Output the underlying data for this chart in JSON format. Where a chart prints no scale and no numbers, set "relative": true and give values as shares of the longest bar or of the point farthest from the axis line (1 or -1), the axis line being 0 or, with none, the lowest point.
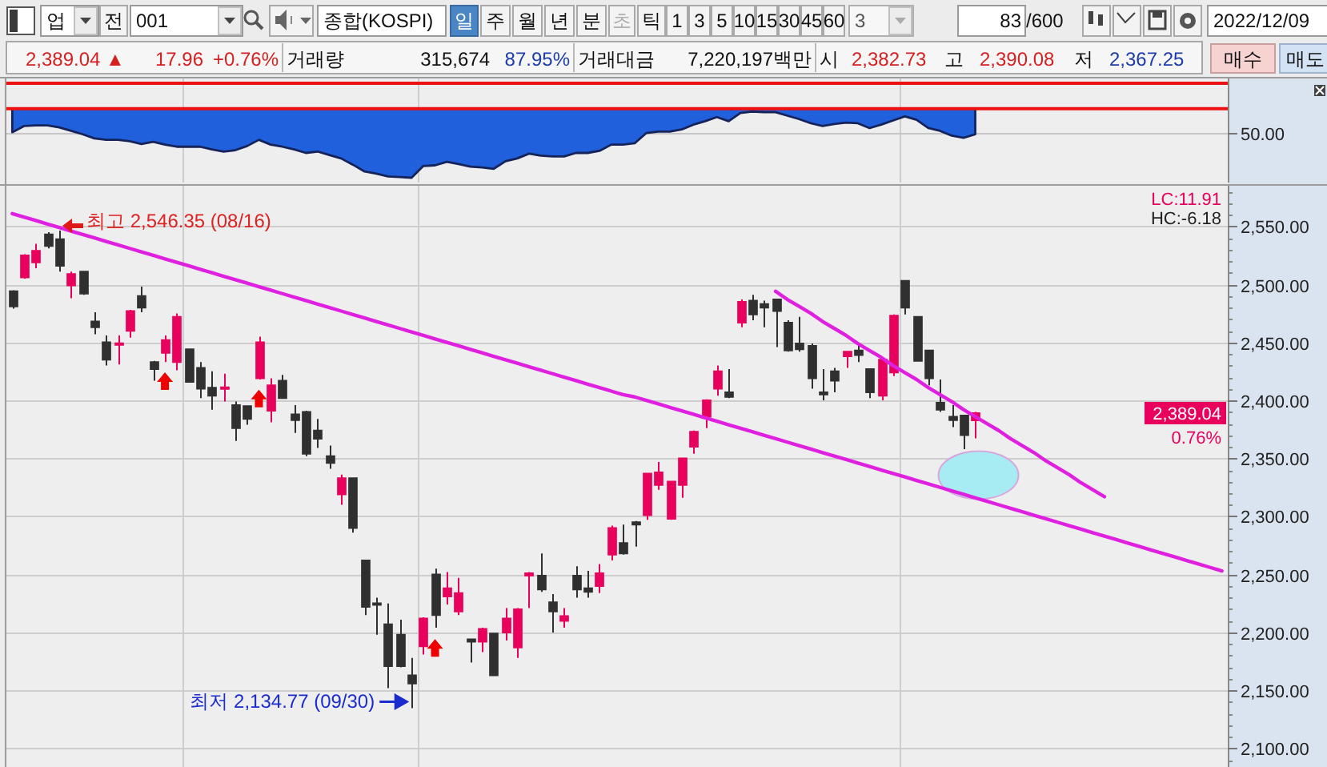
{
  "chart_data": [
    {
      "type": "other",
      "annotations": [
        "업",
        "전",
        "001",
        "종합(KOSPI)",
        "일",
        "주",
        "월",
        "년",
        "분",
        "초",
        "틱",
        "1",
        "3",
        "5",
        "10",
        "15",
        "30",
        "45",
        "60",
        "3",
        "83",
        "/600",
        "2022/12/09",
        "2,389.04 ▲",
        "17.96",
        "+0.76%",
        "거래량",
        "315,674",
        "87.95%",
        "거래대금",
        "7,220,197백만",
        "시",
        "2,382.73",
        "고",
        "2,390.08",
        "저",
        "2,367.25",
        "매수",
        "매도"
      ]
    },
    {
      "type": "area",
      "relative": true,
      "categories": [
        null,
        null,
        null,
        null,
        null,
        null,
        null,
        null,
        null,
        null,
        null,
        null,
        null,
        null,
        null,
        null,
        null,
        null,
        null,
        null,
        null,
        null,
        null,
        null,
        null,
        null,
        null,
        null,
        null,
        null,
        null,
        null,
        null,
        null,
        null,
        null,
        null,
        null,
        null,
        null,
        null,
        null,
        null,
        null,
        null,
        null,
        null,
        null,
        null,
        null,
        null,
        null,
        null,
        null,
        null,
        null,
        null,
        null,
        null,
        null,
        null,
        null,
        null,
        null,
        null,
        null,
        null,
        null,
        null,
        null,
        null,
        null,
        null,
        null,
        null,
        null,
        null,
        null,
        null,
        null,
        null,
        null,
        null,
        null,
        null,
        null,
        null,
        null,
        null,
        null,
        null,
        null,
        null,
        null,
        null,
        null,
        null,
        null,
        null,
        null,
        null,
        null,
        null,
        null
      ],
      "values": [
        -0.34,
        -0.25,
        -0.24,
        -0.24,
        -0.27,
        -0.32,
        -0.37,
        -0.43,
        -0.45,
        -0.45,
        -0.47,
        -0.51,
        -0.48,
        -0.52,
        -0.55,
        -0.55,
        -0.55,
        -0.59,
        -0.62,
        -0.6,
        -0.54,
        -0.45,
        -0.52,
        -0.55,
        -0.59,
        -0.64,
        -0.62,
        -0.67,
        -0.72,
        -0.81,
        -0.91,
        -0.94,
        -0.98,
        -0.99,
        -1,
        -0.83,
        -0.82,
        -0.77,
        -0.8,
        -0.84,
        -0.85,
        -0.87,
        -0.76,
        -0.72,
        -0.65,
        -0.68,
        -0.69,
        -0.69,
        -0.64,
        -0.64,
        -0.61,
        -0.52,
        -0.52,
        -0.5,
        -0.35,
        -0.33,
        -0.33,
        -0.3,
        -0.23,
        -0.18,
        -0.12,
        -0.18,
        -0.06,
        -0.04,
        -0.05,
        -0.05,
        -0.1,
        -0.15,
        -0.21,
        -0.25,
        -0.22,
        -0.2,
        -0.21,
        -0.28,
        -0.23,
        -0.17,
        -0.11,
        -0.16,
        -0.28,
        -0.32,
        -0.39,
        -0.42,
        -0.37,
        null,
        null,
        null,
        null,
        null,
        null,
        null,
        null,
        null,
        null,
        null,
        null,
        null,
        null,
        null,
        null,
        null,
        null,
        null,
        null,
        null
      ],
      "color": "#2060dc",
      "ref_lines": [
        {
          "axis": "y",
          "value": 0.37,
          "color": "#ee1111"
        },
        {
          "axis": "y",
          "value": 0,
          "color": "#ee1111"
        },
        {
          "axis": "y",
          "value": -0.34,
          "color": "#c6c6c6"
        }
      ],
      "annotations": [
        "50.00"
      ]
    },
    {
      "type": "candlestick",
      "categories": [
        null,
        null,
        null,
        null,
        null,
        null,
        null,
        null,
        null,
        null,
        null,
        null,
        null,
        null,
        null,
        null,
        null,
        null,
        null,
        null,
        null,
        null,
        null,
        null,
        null,
        null,
        null,
        null,
        null,
        null,
        null,
        null,
        null,
        null,
        null,
        null,
        null,
        null,
        null,
        null,
        null,
        null,
        null,
        null,
        null,
        null,
        null,
        null,
        null,
        null,
        null,
        null,
        null,
        null,
        null,
        null,
        null,
        null,
        null,
        null,
        null,
        null,
        null,
        null,
        null,
        null,
        null,
        null,
        null,
        null,
        null,
        null,
        null,
        null,
        null,
        null,
        null,
        null,
        null,
        null,
        null,
        null,
        null,
        null,
        null,
        null,
        null,
        null,
        null,
        null,
        null,
        null,
        null,
        null,
        null,
        null,
        null,
        null,
        null,
        null,
        null,
        null,
        null,
        null
      ],
      "ohlc": [
        [
          2494,
          2495,
          2479,
          2481
        ],
        [
          2506,
          2526,
          2505,
          2525
        ],
        [
          2519,
          2535,
          2514,
          2529
        ],
        [
          2543,
          2545,
          2531,
          2533
        ],
        [
          2539,
          2546.35,
          2511,
          2516
        ],
        [
          2499,
          2511,
          2488,
          2509
        ],
        [
          2511,
          2511,
          2491,
          2492
        ],
        [
          2468,
          2476,
          2457,
          2463
        ],
        [
          2450,
          2456,
          2430,
          2435
        ],
        [
          2448,
          2456,
          2431,
          2449
        ],
        [
          2460,
          2478,
          2454,
          2477
        ],
        [
          2490,
          2498,
          2476,
          2480
        ],
        [
          2433,
          2434,
          2417,
          2427
        ],
        [
          2441,
          2456,
          2433,
          2452
        ],
        [
          2433,
          2475,
          2426,
          2472
        ],
        [
          2444,
          2444,
          2416,
          2416
        ],
        [
          2428,
          2433,
          2402,
          2410
        ],
        [
          2411,
          2425,
          2392,
          2404
        ],
        [
          2410,
          2423,
          2399,
          2411
        ],
        [
          2396,
          2399,
          2365,
          2376
        ],
        [
          2395,
          2395,
          2379,
          2384
        ],
        [
          2419,
          2455,
          2418,
          2450
        ],
        [
          2391,
          2419,
          2381,
          2413
        ],
        [
          2417,
          2422,
          2402,
          2402
        ],
        [
          2388,
          2396,
          2372,
          2383
        ],
        [
          2390,
          2391,
          2352,
          2354
        ],
        [
          2374,
          2384,
          2359,
          2367
        ],
        [
          2352,
          2361,
          2341,
          2346
        ],
        [
          2319,
          2336,
          2310,
          2333
        ],
        [
          2333,
          2333,
          2286,
          2290
        ],
        [
          2262,
          2262,
          2215,
          2222
        ],
        [
          2225,
          2230,
          2198,
          2224
        ],
        [
          2207,
          2225,
          2152,
          2171
        ],
        [
          2198,
          2211,
          2170,
          2171
        ],
        [
          2163,
          2178,
          2134.77,
          2156
        ],
        [
          2188,
          2213,
          2181,
          2212
        ],
        [
          2250,
          2255,
          2204,
          2215
        ],
        [
          2231,
          2252,
          2224,
          2238
        ],
        [
          2218,
          2247,
          2215,
          2234
        ],
        [
          2194,
          2194,
          2174,
          2192
        ],
        [
          2192,
          2204,
          2183,
          2203
        ],
        [
          2199,
          2199,
          2163,
          2163
        ],
        [
          2200,
          2221,
          2193,
          2212
        ],
        [
          2187,
          2221,
          2178,
          2220
        ],
        [
          2249,
          2252,
          2221,
          2251
        ],
        [
          2249,
          2268,
          2235,
          2237
        ],
        [
          2226,
          2233,
          2200,
          2218
        ],
        [
          2210,
          2221,
          2204,
          2214
        ],
        [
          2249,
          2257,
          2230,
          2237
        ],
        [
          2238,
          2253,
          2230,
          2235
        ],
        [
          2240,
          2259,
          2234,
          2251
        ],
        [
          2267,
          2292,
          2262,
          2290
        ],
        [
          2277,
          2293,
          2267,
          2268
        ],
        [
          2295,
          2296,
          2274,
          2293
        ],
        [
          2301,
          2337,
          2297,
          2337
        ],
        [
          2327,
          2347,
          2323,
          2338
        ],
        [
          2298,
          2330,
          2297,
          2330
        ],
        [
          2327,
          2350,
          2316,
          2350
        ],
        [
          2360,
          2374,
          2354,
          2373
        ],
        [
          2386,
          2401,
          2376,
          2400
        ],
        [
          2410,
          2430,
          2404,
          2425
        ],
        [
          2407,
          2427,
          2402,
          2403
        ],
        [
          2467,
          2487,
          2463,
          2485
        ],
        [
          2486,
          2491,
          2469,
          2474
        ],
        [
          2483,
          2486,
          2463,
          2480
        ],
        [
          2487,
          2487,
          2446,
          2477
        ],
        [
          2467,
          2469,
          2442,
          2443
        ],
        [
          2449,
          2472,
          2442,
          2444
        ],
        [
          2447,
          2449,
          2410,
          2419
        ],
        [
          2407,
          2427,
          2400,
          2405
        ],
        [
          2425,
          2428,
          2407,
          2417
        ],
        [
          2438,
          2442,
          2428,
          2442
        ],
        [
          2443,
          2449,
          2433,
          2439
        ],
        [
          2427,
          2427,
          2402,
          2407
        ],
        [
          2404,
          2435,
          2400,
          2435
        ],
        [
          2424,
          2474,
          2421,
          2473
        ],
        [
          2503,
          2503,
          2474,
          2480
        ],
        [
          2472,
          2472,
          2434,
          2434
        ],
        [
          2443,
          2443,
          2413,
          2419
        ],
        [
          2398,
          2418,
          2390,
          2392
        ],
        [
          2386,
          2396,
          2377,
          2383
        ],
        [
          2387,
          2387,
          2358,
          2370
        ],
        [
          2382.73,
          2390.08,
          2367.25,
          2389.04
        ],
        null,
        null,
        null,
        null,
        null,
        null,
        null,
        null,
        null,
        null,
        null,
        null,
        null,
        null,
        null,
        null,
        null,
        null,
        null,
        null,
        null
      ],
      "colors": [
        "#303030",
        "#e8005c",
        "#e8005c",
        "#303030",
        "#303030",
        "#e8005c",
        "#303030",
        "#303030",
        "#303030",
        "#e8005c",
        "#e8005c",
        "#303030",
        "#303030",
        "#e8005c",
        "#e8005c",
        "#303030",
        "#303030",
        "#303030",
        "#e8005c",
        "#303030",
        "#303030",
        "#e8005c",
        "#e8005c",
        "#303030",
        "#303030",
        "#303030",
        "#303030",
        "#303030",
        "#e8005c",
        "#303030",
        "#303030",
        "#303030",
        "#303030",
        "#303030",
        "#303030",
        "#e8005c",
        "#303030",
        "#e8005c",
        "#e8005c",
        "#303030",
        "#e8005c",
        "#303030",
        "#e8005c",
        "#e8005c",
        "#e8005c",
        "#303030",
        "#303030",
        "#e8005c",
        "#303030",
        "#303030",
        "#e8005c",
        "#e8005c",
        "#303030",
        "#303030",
        "#e8005c",
        "#e8005c",
        "#e8005c",
        "#e8005c",
        "#e8005c",
        "#e8005c",
        "#e8005c",
        "#303030",
        "#e8005c",
        "#303030",
        "#303030",
        "#303030",
        "#303030",
        "#303030",
        "#303030",
        "#303030",
        "#303030",
        "#e8005c",
        "#303030",
        "#303030",
        "#e8005c",
        "#e8005c",
        "#303030",
        "#303030",
        "#303030",
        "#303030",
        "#303030",
        "#303030",
        "#e8005c",
        null,
        null,
        null,
        null,
        null,
        null,
        null,
        null,
        null,
        null,
        null,
        null,
        null,
        null,
        null,
        null,
        null,
        null,
        null,
        null,
        null
      ],
      "series": [
        {
          "type": "line",
          "color": "#e020e0",
          "values": [
            2561,
            2558,
            2555,
            2552,
            2549,
            2546,
            2543,
            2540,
            2537,
            2534,
            2531,
            2528,
            2525,
            2522,
            2519,
            2516,
            2513,
            2510,
            2507,
            2504,
            2501,
            2498,
            2495,
            2492,
            2489,
            2486,
            2483,
            2480,
            2477,
            2474,
            2471,
            2468,
            2465,
            2462,
            2459,
            2456,
            2453,
            2450,
            2447,
            2444,
            2441,
            2438,
            2435,
            2432,
            2429,
            2426,
            2423,
            2420,
            2417,
            2414,
            2411,
            2408,
            2405,
            2403,
            2400,
            2397,
            2394,
            2391,
            2388,
            2385,
            2382,
            2379,
            2376,
            2373,
            2370,
            2367,
            2364,
            2361,
            2358,
            2355,
            2352,
            2349,
            2346,
            2343,
            2340,
            2337,
            2334,
            2331,
            2328,
            2325,
            2322,
            2319,
            2316,
            2313,
            2310,
            2307,
            2304,
            2301,
            2298,
            2295,
            2292,
            2289,
            2286,
            2283,
            2280,
            2277,
            2274,
            2271,
            2268,
            2265,
            2262,
            2259,
            2256,
            2253
          ]
        },
        {
          "type": "line",
          "color": "#e020e0",
          "values": [
            null,
            null,
            null,
            null,
            null,
            null,
            null,
            null,
            null,
            null,
            null,
            null,
            null,
            null,
            null,
            null,
            null,
            null,
            null,
            null,
            null,
            null,
            null,
            null,
            null,
            null,
            null,
            null,
            null,
            null,
            null,
            null,
            null,
            null,
            null,
            null,
            null,
            null,
            null,
            null,
            null,
            null,
            null,
            null,
            null,
            null,
            null,
            null,
            null,
            null,
            null,
            null,
            null,
            null,
            null,
            null,
            null,
            null,
            null,
            null,
            null,
            null,
            null,
            null,
            null,
            2494,
            2487,
            2481,
            2475,
            2468,
            2462,
            2456,
            2449,
            2443,
            2437,
            2430,
            2424,
            2418,
            2411,
            2405,
            2399,
            2392,
            2386,
            2380,
            2374,
            2367,
            2361,
            2355,
            2348,
            2342,
            2336,
            2329,
            2323,
            2317,
            null,
            null,
            null,
            null,
            null,
            null,
            null,
            null,
            null,
            null
          ]
        },
        {
          "type": "scatter",
          "marker": "triangle",
          "color": "#ee0000",
          "values": [
            null,
            null,
            null,
            null,
            null,
            null,
            null,
            null,
            null,
            null,
            null,
            null,
            null,
            2416,
            null,
            null,
            null,
            null,
            null,
            null,
            null,
            2401,
            null,
            null,
            null,
            null,
            null,
            null,
            null,
            null,
            null,
            null,
            null,
            null,
            null,
            null,
            2186,
            null,
            null,
            null,
            null,
            null,
            null,
            null,
            null,
            null,
            null,
            null,
            null,
            null,
            null,
            null,
            null,
            null,
            null,
            null,
            null,
            null,
            null,
            null,
            null,
            null,
            null,
            null,
            null,
            null,
            null,
            null,
            null,
            null,
            null,
            null,
            null,
            null,
            null,
            null,
            null,
            null,
            null,
            null,
            null,
            null,
            null,
            null,
            null,
            null,
            null,
            null,
            null,
            null,
            null,
            null,
            null,
            null,
            null,
            null,
            null,
            null,
            null,
            null,
            null,
            null,
            null,
            null
          ]
        }
      ],
      "ylim": [
        2084,
        2585
      ],
      "yticks": [
        {
          "value": 2100,
          "label": "2,100.00"
        },
        {
          "value": 2150,
          "label": "2,150.00"
        },
        {
          "value": 2200,
          "label": "2,200.00"
        },
        {
          "value": 2250,
          "label": "2,250.00"
        },
        {
          "value": 2300,
          "label": "2,300.00"
        },
        {
          "value": 2350,
          "label": "2,350.00"
        },
        {
          "value": 2400,
          "label": "2,400.00"
        },
        {
          "value": 2450,
          "label": "2,450.00"
        },
        {
          "value": 2500,
          "label": "2,500.00"
        },
        {
          "value": 2550,
          "label": "2,550.00"
        }
      ],
      "grid": "y",
      "tick_labels": "y",
      "annotations": [
        "최고 2,546.35 (08/16)",
        "최저 2,134.77 (09/30)",
        "2,389.04",
        "LC:11.91",
        "HC:-6.18",
        "0.76%"
      ]
    }
  ]
}
